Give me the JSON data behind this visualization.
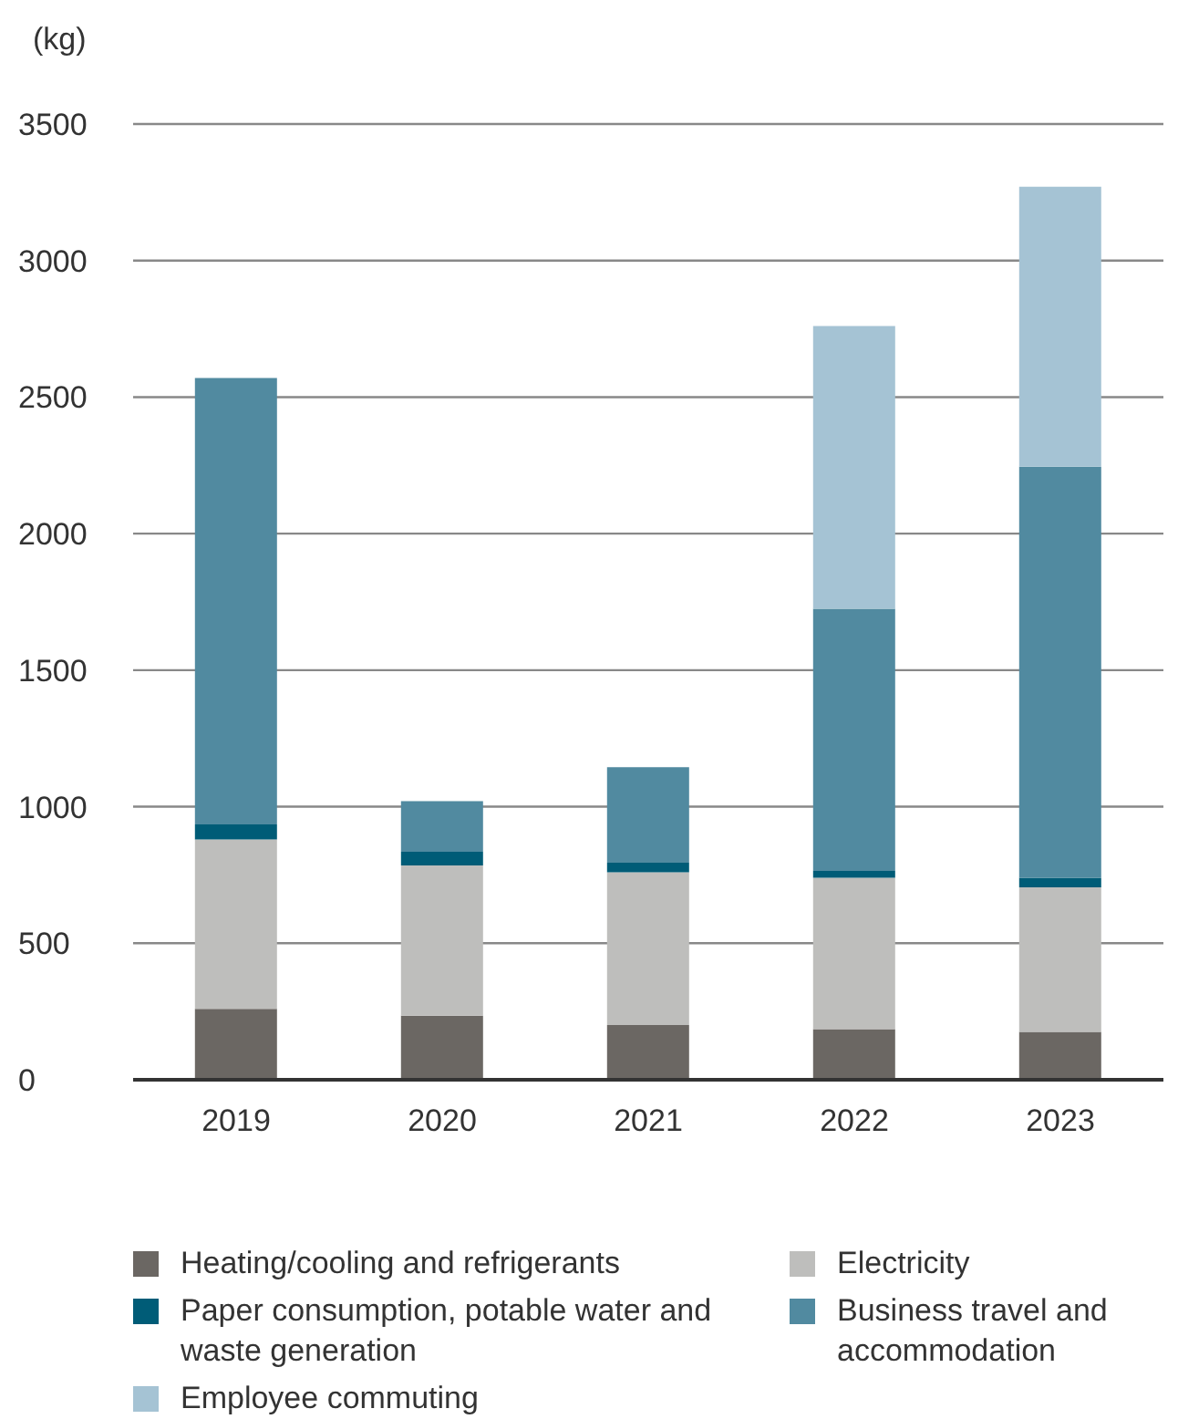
{
  "chart_data": {
    "type": "bar",
    "stacked": true,
    "ylabel": "(kg)",
    "categories": [
      "2019",
      "2020",
      "2021",
      "2022",
      "2023"
    ],
    "series": [
      {
        "name": "Heating/cooling and refrigerants",
        "color": "#6b6763",
        "values": [
          260,
          235,
          200,
          185,
          175
        ]
      },
      {
        "name": "Electricity",
        "color": "#bebebc",
        "values": [
          620,
          550,
          560,
          555,
          530
        ]
      },
      {
        "name": "Paper consumption, potable water and waste generation",
        "color": "#005c77",
        "values": [
          55,
          50,
          35,
          25,
          35
        ]
      },
      {
        "name": "Business travel and accommodation",
        "color": "#518aa0",
        "values": [
          1635,
          185,
          350,
          960,
          1505
        ]
      },
      {
        "name": "Employee commuting",
        "color": "#a5c3d4",
        "values": [
          0,
          0,
          0,
          1035,
          1025
        ]
      }
    ],
    "ylim": [
      0,
      3500
    ],
    "yticks": [
      0,
      500,
      1000,
      1500,
      2000,
      2500,
      3000,
      3500
    ],
    "grid": "y",
    "legend": "bottom"
  }
}
